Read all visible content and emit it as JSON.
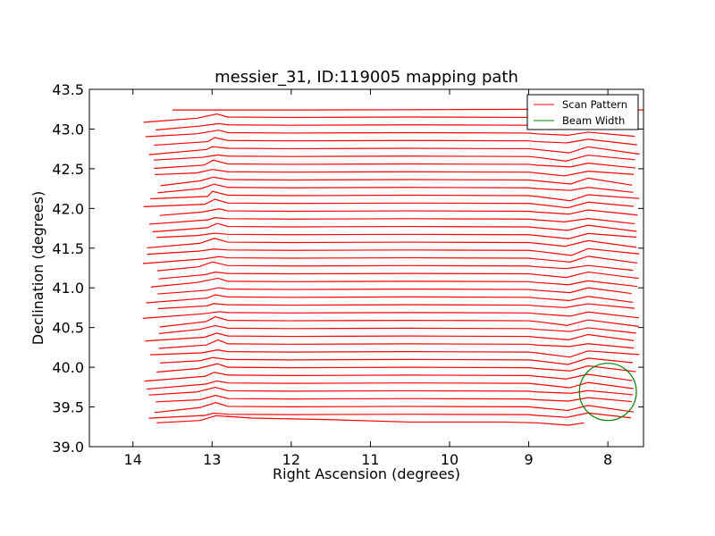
{
  "chart_data": {
    "type": "line",
    "title": "messier_31, ID:119005 mapping path",
    "xlabel": "Right Ascension (degrees)",
    "ylabel": "Declination (degrees)",
    "xlim": [
      14.55,
      7.55
    ],
    "ylim": [
      39.0,
      43.5
    ],
    "x_inverted": true,
    "xticks": [
      14,
      13,
      12,
      11,
      10,
      9,
      8
    ],
    "xtick_labels": [
      "14",
      "13",
      "12",
      "11",
      "10",
      "9",
      "8"
    ],
    "yticks": [
      39.0,
      39.5,
      40.0,
      40.5,
      41.0,
      41.5,
      42.0,
      42.5,
      43.0,
      43.5
    ],
    "ytick_labels": [
      "39.0",
      "39.5",
      "40.0",
      "40.5",
      "41.0",
      "41.5",
      "42.0",
      "42.5",
      "43.0",
      "43.5"
    ],
    "grid": false,
    "legend_position": "top-right",
    "scan_pattern": {
      "name": "Scan Pattern",
      "color": "#ff0000",
      "dec_start": 39.3,
      "dec_end": 43.24,
      "row_count": 41,
      "ra_left_min": 13.65,
      "ra_left_max": 13.88,
      "ra_right_min": 7.6,
      "ra_right_max": 7.72,
      "first_row_x": [
        13.7,
        13.15,
        12.95,
        12.5,
        11.5,
        10.5,
        9.3,
        8.9,
        8.5,
        8.3
      ],
      "first_row_y": [
        39.3,
        39.33,
        39.39,
        39.36,
        39.34,
        39.31,
        39.31,
        39.3,
        39.27,
        39.3
      ],
      "last_row_x": [
        13.5,
        12.0,
        10.0,
        8.3,
        7.55
      ],
      "last_row_y": [
        43.24,
        43.24,
        43.245,
        43.25,
        43.24
      ]
    },
    "beam_width": {
      "name": "Beam Width",
      "color": "#008000",
      "center_ra": 8.0,
      "center_dec": 39.69,
      "radius_deg": 0.36
    }
  },
  "legend": {
    "scan_label": "Scan Pattern",
    "beam_label": "Beam Width"
  }
}
